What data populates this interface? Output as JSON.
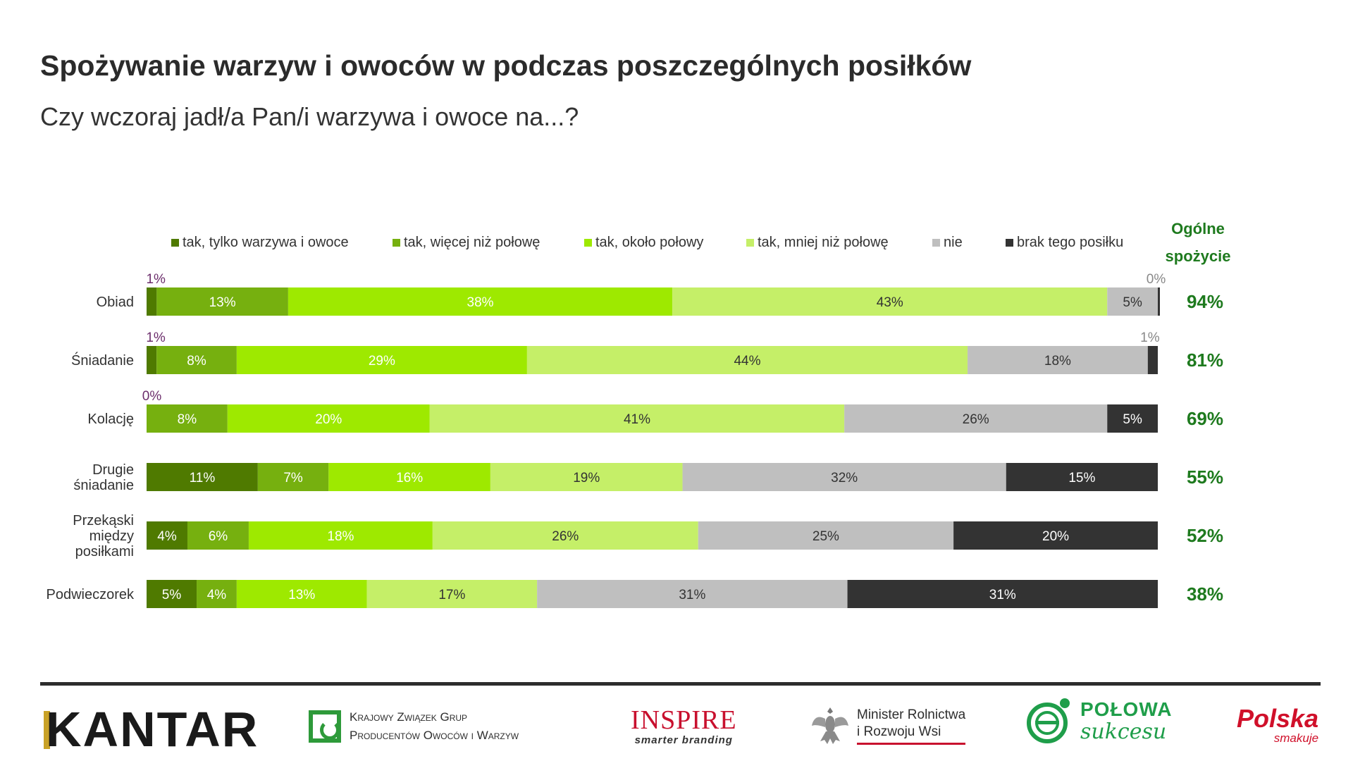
{
  "header": {
    "title": "Spożywanie warzyw i owoców w podczas poszczególnych posiłków",
    "subtitle": "Czy wczoraj jadł/a Pan/i warzywa i owoce na...?"
  },
  "overall_header": [
    "Ogólne",
    "spożycie"
  ],
  "chart_data": {
    "type": "bar",
    "orientation": "horizontal",
    "stacked": true,
    "legend_position": "top",
    "categories": [
      [
        "Obiad"
      ],
      [
        "Śniadanie"
      ],
      [
        "Kolację"
      ],
      [
        "Drugie",
        "śniadanie"
      ],
      [
        "Przekąski",
        "między",
        "posiłkami"
      ],
      [
        "Podwieczorek"
      ]
    ],
    "series": [
      {
        "name": "tak, tylko warzywa i owoce",
        "color": "#4f7a00",
        "values": [
          1,
          1,
          0,
          11,
          4,
          5
        ]
      },
      {
        "name": "tak, więcej niż połowę",
        "color": "#76b00f",
        "values": [
          13,
          8,
          8,
          7,
          6,
          4
        ]
      },
      {
        "name": "tak, około połowy",
        "color": "#9ee900",
        "values": [
          38,
          29,
          20,
          16,
          18,
          13
        ]
      },
      {
        "name": "tak, mniej niż połowę",
        "color": "#c5ef68",
        "values": [
          43,
          44,
          41,
          19,
          26,
          17
        ]
      },
      {
        "name": "nie",
        "color": "#bfbfbf",
        "values": [
          5,
          18,
          26,
          32,
          25,
          31
        ]
      },
      {
        "name": "brak tego posiłku",
        "color": "#333333",
        "values": [
          0,
          1,
          5,
          15,
          20,
          31
        ]
      }
    ],
    "overall": [
      "94%",
      "81%",
      "69%",
      "55%",
      "52%",
      "38%"
    ],
    "value_suffix": "%",
    "xlim": [
      0,
      100
    ]
  },
  "footer": {
    "kantar": "KANTAR",
    "kzg": [
      "Krajowy Związek Grup",
      "Producentów Owoców i Warzyw"
    ],
    "inspire": "INSPIRE",
    "inspire_sub": "smarter branding",
    "ministry": [
      "Minister Rolnictwa",
      "i Rozwoju Wsi"
    ],
    "polowa": [
      "POŁOWA",
      "sukcesu"
    ],
    "polska": "Polska",
    "polska_sub": "smakuje"
  }
}
